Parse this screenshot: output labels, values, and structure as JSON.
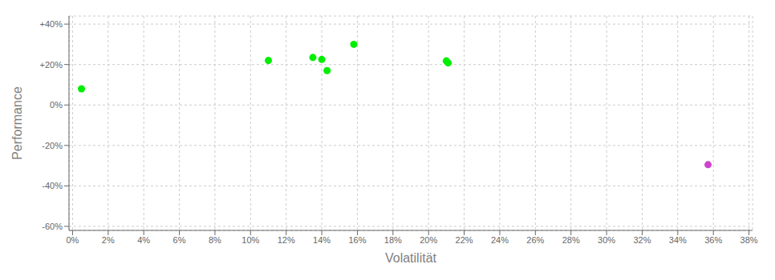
{
  "chart_data": {
    "type": "scatter",
    "xlabel": "Volatilität",
    "ylabel": "Performance",
    "series": [
      {
        "color": "#00ee00",
        "x": [
          0.005,
          0.11,
          0.135,
          0.14,
          0.143,
          0.158,
          0.21,
          0.211
        ],
        "values": [
          0.08,
          0.22,
          0.235,
          0.225,
          0.17,
          0.3,
          0.218,
          0.208
        ]
      },
      {
        "color": "#cc44cc",
        "x": [
          0.357
        ],
        "values": [
          -0.295
        ]
      }
    ],
    "xlim": [
      -0.002,
      0.382
    ],
    "ylim": [
      -0.62,
      0.44
    ],
    "xticks": [
      {
        "value": 0.0,
        "label": "0%"
      },
      {
        "value": 0.02,
        "label": "2%"
      },
      {
        "value": 0.04,
        "label": "4%"
      },
      {
        "value": 0.06,
        "label": "6%"
      },
      {
        "value": 0.08,
        "label": "8%"
      },
      {
        "value": 0.1,
        "label": "10%"
      },
      {
        "value": 0.12,
        "label": "12%"
      },
      {
        "value": 0.14,
        "label": "14%"
      },
      {
        "value": 0.16,
        "label": "16%"
      },
      {
        "value": 0.18,
        "label": "18%"
      },
      {
        "value": 0.2,
        "label": "20%"
      },
      {
        "value": 0.22,
        "label": "22%"
      },
      {
        "value": 0.24,
        "label": "24%"
      },
      {
        "value": 0.26,
        "label": "26%"
      },
      {
        "value": 0.28,
        "label": "28%"
      },
      {
        "value": 0.3,
        "label": "30%"
      },
      {
        "value": 0.32,
        "label": "32%"
      },
      {
        "value": 0.34,
        "label": "34%"
      },
      {
        "value": 0.36,
        "label": "36%"
      },
      {
        "value": 0.38,
        "label": "38%"
      }
    ],
    "yticks": [
      {
        "value": 0.4,
        "label": "+40%"
      },
      {
        "value": 0.2,
        "label": "+20%"
      },
      {
        "value": 0.0,
        "label": "0%"
      },
      {
        "value": -0.2,
        "label": "-20%"
      },
      {
        "value": -0.4,
        "label": "-40%"
      },
      {
        "value": -0.6,
        "label": "-60%"
      }
    ],
    "grid": true
  }
}
